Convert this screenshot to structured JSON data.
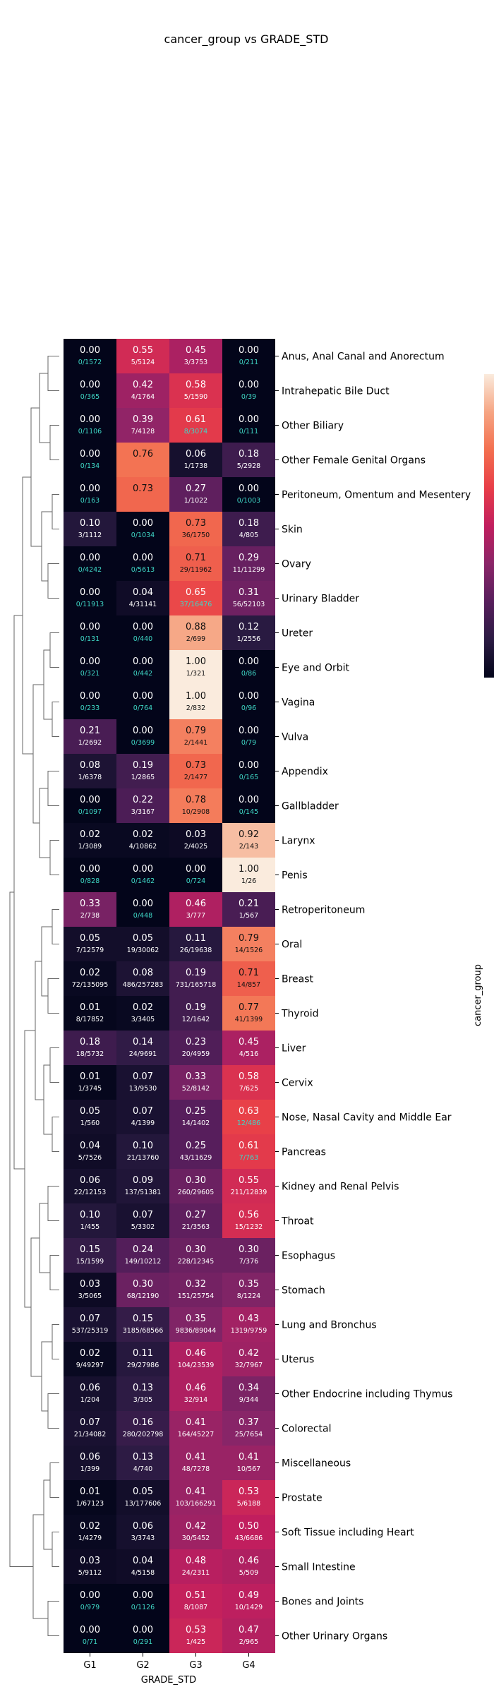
{
  "chart_data": {
    "type": "heatmap",
    "title": "cancer_group vs GRADE_STD",
    "xlabel": "GRADE_STD",
    "ylabel": "cancer_group",
    "columns": [
      "G1",
      "G2",
      "G3",
      "G4"
    ],
    "color_range": [
      0,
      1
    ],
    "colormap": "rocket",
    "legend_position": "right",
    "dendrogram": "left",
    "rows": [
      {
        "label": "Anus, Anal Canal and Anorectum",
        "values": [
          0.0,
          0.55,
          0.45,
          0.0
        ],
        "ratios": [
          "0/1572",
          "5/5124",
          "3/3753",
          "0/211"
        ]
      },
      {
        "label": "Intrahepatic Bile Duct",
        "values": [
          0.0,
          0.42,
          0.58,
          0.0
        ],
        "ratios": [
          "0/365",
          "4/1764",
          "5/1590",
          "0/39"
        ]
      },
      {
        "label": "Other Biliary",
        "values": [
          0.0,
          0.39,
          0.61,
          0.0
        ],
        "ratios": [
          "0/1106",
          "7/4128",
          "8/3074",
          "0/111"
        ]
      },
      {
        "label": "Other Female Genital Organs",
        "values": [
          0.0,
          0.76,
          0.06,
          0.18
        ],
        "ratios": [
          "0/134",
          "",
          "1/1738",
          "5/2928"
        ]
      },
      {
        "label": "Peritoneum, Omentum and Mesentery",
        "values": [
          0.0,
          0.73,
          0.27,
          0.0
        ],
        "ratios": [
          "0/163",
          "",
          "1/1022",
          "0/1003"
        ]
      },
      {
        "label": "Skin",
        "values": [
          0.1,
          0.0,
          0.73,
          0.18
        ],
        "ratios": [
          "3/1112",
          "0/1034",
          "36/1750",
          "4/805"
        ]
      },
      {
        "label": "Ovary",
        "values": [
          0.0,
          0.0,
          0.71,
          0.29
        ],
        "ratios": [
          "0/4242",
          "0/5613",
          "29/11962",
          "11/11299"
        ]
      },
      {
        "label": "Urinary Bladder",
        "values": [
          0.0,
          0.04,
          0.65,
          0.31
        ],
        "ratios": [
          "0/11913",
          "4/31141",
          "37/16476",
          "56/52103"
        ]
      },
      {
        "label": "Ureter",
        "values": [
          0.0,
          0.0,
          0.88,
          0.12
        ],
        "ratios": [
          "0/131",
          "0/440",
          "2/699",
          "1/2556"
        ]
      },
      {
        "label": "Eye and Orbit",
        "values": [
          0.0,
          0.0,
          1.0,
          0.0
        ],
        "ratios": [
          "0/321",
          "0/442",
          "1/321",
          "0/86"
        ]
      },
      {
        "label": "Vagina",
        "values": [
          0.0,
          0.0,
          1.0,
          0.0
        ],
        "ratios": [
          "0/233",
          "0/764",
          "2/832",
          "0/96"
        ]
      },
      {
        "label": "Vulva",
        "values": [
          0.21,
          0.0,
          0.79,
          0.0
        ],
        "ratios": [
          "1/2692",
          "0/3699",
          "2/1441",
          "0/79"
        ]
      },
      {
        "label": "Appendix",
        "values": [
          0.08,
          0.19,
          0.73,
          0.0
        ],
        "ratios": [
          "1/6378",
          "1/2865",
          "2/1477",
          "0/165"
        ]
      },
      {
        "label": "Gallbladder",
        "values": [
          0.0,
          0.22,
          0.78,
          0.0
        ],
        "ratios": [
          "0/1097",
          "3/3167",
          "10/2908",
          "0/145"
        ]
      },
      {
        "label": "Larynx",
        "values": [
          0.02,
          0.02,
          0.03,
          0.92
        ],
        "ratios": [
          "1/3089",
          "4/10862",
          "2/4025",
          "2/143"
        ]
      },
      {
        "label": "Penis",
        "values": [
          0.0,
          0.0,
          0.0,
          1.0
        ],
        "ratios": [
          "0/828",
          "0/1462",
          "0/724",
          "1/26"
        ]
      },
      {
        "label": "Retroperitoneum",
        "values": [
          0.33,
          0.0,
          0.46,
          0.21
        ],
        "ratios": [
          "2/738",
          "0/448",
          "3/777",
          "1/567"
        ]
      },
      {
        "label": "Oral",
        "values": [
          0.05,
          0.05,
          0.11,
          0.79
        ],
        "ratios": [
          "7/12579",
          "19/30062",
          "26/19638",
          "14/1526"
        ]
      },
      {
        "label": "Breast",
        "values": [
          0.02,
          0.08,
          0.19,
          0.71
        ],
        "ratios": [
          "72/135095",
          "486/257283",
          "731/165718",
          "14/857"
        ]
      },
      {
        "label": "Thyroid",
        "values": [
          0.01,
          0.02,
          0.19,
          0.77
        ],
        "ratios": [
          "8/17852",
          "3/3405",
          "12/1642",
          "41/1399"
        ]
      },
      {
        "label": "Liver",
        "values": [
          0.18,
          0.14,
          0.23,
          0.45
        ],
        "ratios": [
          "18/5732",
          "24/9691",
          "20/4959",
          "4/516"
        ]
      },
      {
        "label": "Cervix",
        "values": [
          0.01,
          0.07,
          0.33,
          0.58
        ],
        "ratios": [
          "1/3745",
          "13/9530",
          "52/8142",
          "7/625"
        ]
      },
      {
        "label": "Nose, Nasal Cavity and Middle Ear",
        "values": [
          0.05,
          0.07,
          0.25,
          0.63
        ],
        "ratios": [
          "1/560",
          "4/1399",
          "14/1402",
          "12/486"
        ]
      },
      {
        "label": "Pancreas",
        "values": [
          0.04,
          0.1,
          0.25,
          0.61
        ],
        "ratios": [
          "5/7526",
          "21/13760",
          "43/11629",
          "7/763"
        ]
      },
      {
        "label": "Kidney and Renal Pelvis",
        "values": [
          0.06,
          0.09,
          0.3,
          0.55
        ],
        "ratios": [
          "22/12153",
          "137/51381",
          "260/29605",
          "211/12839"
        ]
      },
      {
        "label": "Throat",
        "values": [
          0.1,
          0.07,
          0.27,
          0.56
        ],
        "ratios": [
          "1/455",
          "5/3302",
          "21/3563",
          "15/1232"
        ]
      },
      {
        "label": "Esophagus",
        "values": [
          0.15,
          0.24,
          0.3,
          0.3
        ],
        "ratios": [
          "15/1599",
          "149/10212",
          "228/12345",
          "7/376"
        ]
      },
      {
        "label": "Stomach",
        "values": [
          0.03,
          0.3,
          0.32,
          0.35
        ],
        "ratios": [
          "3/5065",
          "68/12190",
          "151/25754",
          "8/1224"
        ]
      },
      {
        "label": "Lung and Bronchus",
        "values": [
          0.07,
          0.15,
          0.35,
          0.43
        ],
        "ratios": [
          "537/25319",
          "3185/68566",
          "9836/89044",
          "1319/9759"
        ]
      },
      {
        "label": "Uterus",
        "values": [
          0.02,
          0.11,
          0.46,
          0.42
        ],
        "ratios": [
          "9/49297",
          "29/27986",
          "104/23539",
          "32/7967"
        ]
      },
      {
        "label": "Other Endocrine including Thymus",
        "values": [
          0.06,
          0.13,
          0.46,
          0.34
        ],
        "ratios": [
          "1/204",
          "3/305",
          "32/914",
          "9/344"
        ]
      },
      {
        "label": "Colorectal",
        "values": [
          0.07,
          0.16,
          0.41,
          0.37
        ],
        "ratios": [
          "21/34082",
          "280/202798",
          "164/45227",
          "25/7654"
        ]
      },
      {
        "label": "Miscellaneous",
        "values": [
          0.06,
          0.13,
          0.41,
          0.41
        ],
        "ratios": [
          "1/399",
          "4/740",
          "48/7278",
          "10/567"
        ]
      },
      {
        "label": "Prostate",
        "values": [
          0.01,
          0.05,
          0.41,
          0.53
        ],
        "ratios": [
          "1/67123",
          "13/177606",
          "103/166291",
          "5/6188"
        ]
      },
      {
        "label": "Soft Tissue including Heart",
        "values": [
          0.02,
          0.06,
          0.42,
          0.5
        ],
        "ratios": [
          "1/4279",
          "3/3743",
          "30/5452",
          "43/6686"
        ]
      },
      {
        "label": "Small Intestine",
        "values": [
          0.03,
          0.04,
          0.48,
          0.46
        ],
        "ratios": [
          "5/9112",
          "4/5158",
          "24/2311",
          "5/509"
        ]
      },
      {
        "label": "Bones and Joints",
        "values": [
          0.0,
          0.0,
          0.51,
          0.49
        ],
        "ratios": [
          "0/979",
          "0/1126",
          "8/1087",
          "10/1429"
        ]
      },
      {
        "label": "Other Urinary Organs",
        "values": [
          0.0,
          0.0,
          0.53,
          0.47
        ],
        "ratios": [
          "0/71",
          "0/291",
          "1/425",
          "2/965"
        ]
      }
    ]
  }
}
